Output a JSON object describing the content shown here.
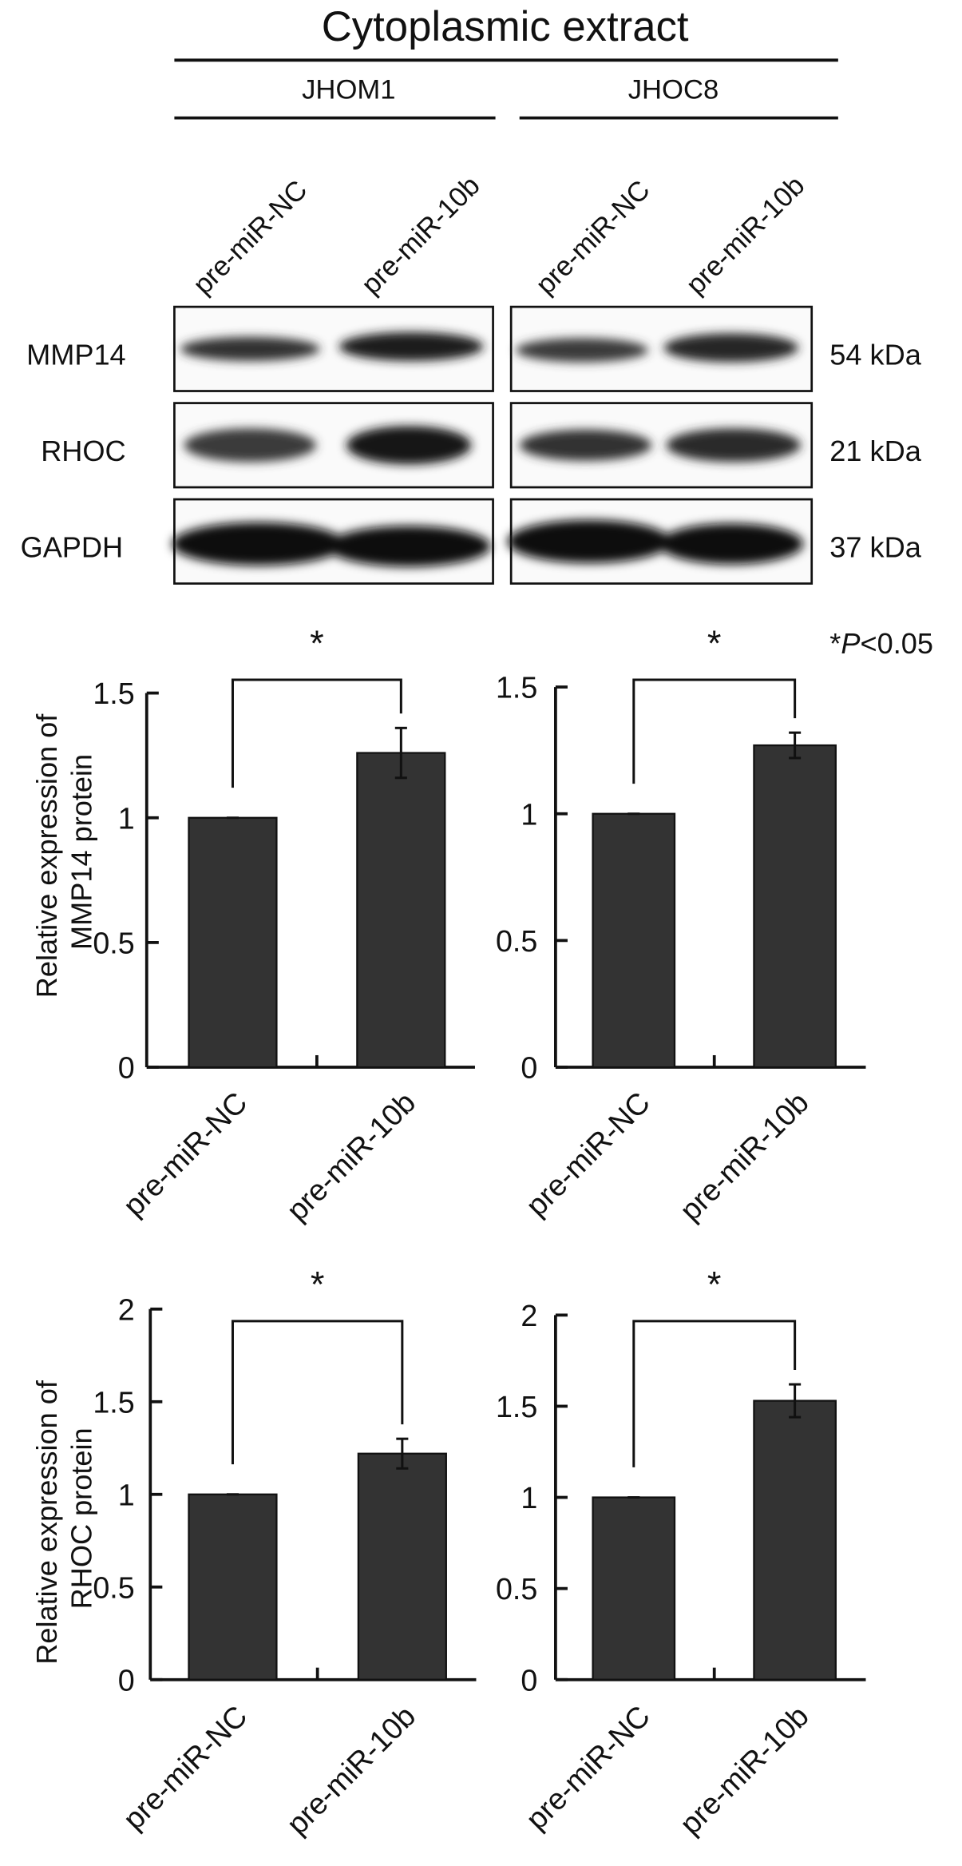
{
  "header": {
    "title": "Cytoplasmic  extract",
    "groups": [
      "JHOM1",
      "JHOC8"
    ]
  },
  "blot": {
    "lanes": [
      "pre-miR-NC",
      "pre-miR-10b"
    ],
    "rows": [
      {
        "label": "MMP14",
        "size": "54 kDa"
      },
      {
        "label": "RHOC",
        "size": "21 kDa"
      },
      {
        "label": "GAPDH",
        "size": "37 kDa"
      }
    ]
  },
  "significance": {
    "mark": "*",
    "note_prefix": "*",
    "note_p": "P",
    "note_rest": "<0.05"
  },
  "chart_data": [
    {
      "type": "bar",
      "cell_line": "JHOM1",
      "categories": [
        "pre-miR-NC",
        "pre-miR-10b"
      ],
      "values": [
        1.0,
        1.26
      ],
      "errors": [
        0.0,
        0.1
      ],
      "ylabel_lines": [
        "Relative expression of",
        "MMP14 protein"
      ],
      "ylim": [
        0,
        1.5
      ],
      "yticks": [
        0,
        0.5,
        1,
        1.5
      ],
      "ytick_labels": [
        "0",
        "0.5",
        "1",
        "1.5"
      ],
      "significance": "*"
    },
    {
      "type": "bar",
      "cell_line": "JHOC8",
      "categories": [
        "pre-miR-NC",
        "pre-miR-10b"
      ],
      "values": [
        1.0,
        1.27
      ],
      "errors": [
        0.0,
        0.05
      ],
      "ylim": [
        0,
        1.5
      ],
      "yticks": [
        0,
        0.5,
        1,
        1.5
      ],
      "ytick_labels": [
        "0",
        "0.5",
        "1",
        "1.5"
      ],
      "significance": "*"
    },
    {
      "type": "bar",
      "cell_line": "JHOM1",
      "categories": [
        "pre-miR-NC",
        "pre-miR-10b"
      ],
      "values": [
        1.0,
        1.22
      ],
      "errors": [
        0.0,
        0.08
      ],
      "ylabel_lines": [
        "Relative expression of",
        "RHOC protein"
      ],
      "ylim": [
        0,
        2
      ],
      "yticks": [
        0,
        0.5,
        1,
        1.5,
        2
      ],
      "ytick_labels": [
        "0",
        "0.5",
        "1",
        "1.5",
        "2"
      ],
      "significance": "*"
    },
    {
      "type": "bar",
      "cell_line": "JHOC8",
      "categories": [
        "pre-miR-NC",
        "pre-miR-10b"
      ],
      "values": [
        1.0,
        1.53
      ],
      "errors": [
        0.0,
        0.09
      ],
      "ylim": [
        0,
        2
      ],
      "yticks": [
        0,
        0.5,
        1,
        1.5,
        2
      ],
      "ytick_labels": [
        "0",
        "0.5",
        "1",
        "1.5",
        "2"
      ],
      "significance": "*"
    }
  ]
}
